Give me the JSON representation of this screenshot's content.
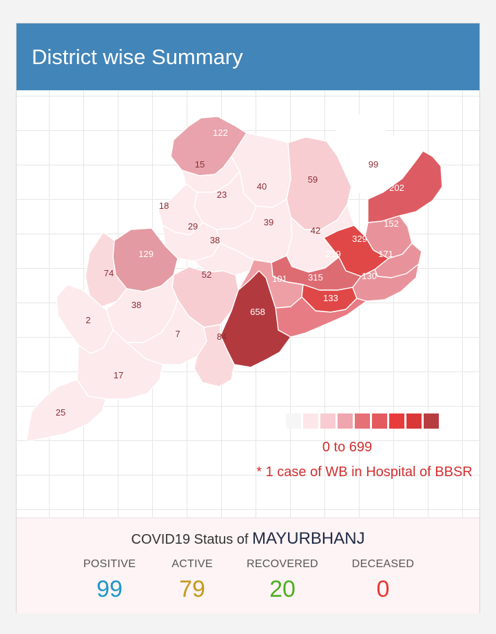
{
  "header": {
    "title": "District wise Summary"
  },
  "map": {
    "districts": [
      {
        "value": "122",
        "fill": "#e9a3ac"
      },
      {
        "value": "15",
        "fill": "#fdeaec"
      },
      {
        "value": "99",
        "fill": "#ffffff"
      },
      {
        "value": "59",
        "fill": "#f7cdd2"
      },
      {
        "value": "40",
        "fill": "#fdeaec"
      },
      {
        "value": "23",
        "fill": "#fdeaec"
      },
      {
        "value": "202",
        "fill": "#dd5c64"
      },
      {
        "value": "18",
        "fill": "#fdeaec"
      },
      {
        "value": "29",
        "fill": "#fdeaec"
      },
      {
        "value": "39",
        "fill": "#fdeaec"
      },
      {
        "value": "42",
        "fill": "#fdeaec"
      },
      {
        "value": "152",
        "fill": "#e8939b"
      },
      {
        "value": "329",
        "fill": "#e04848"
      },
      {
        "value": "38",
        "fill": "#fdeaec"
      },
      {
        "value": "129",
        "fill": "#e39aa2"
      },
      {
        "value": "171",
        "fill": "#e8939b"
      },
      {
        "value": "219",
        "fill": "#dd6c72"
      },
      {
        "value": "74",
        "fill": "#fad9dd"
      },
      {
        "value": "52",
        "fill": "#f7cdd2"
      },
      {
        "value": "101",
        "fill": "#ee9fa6"
      },
      {
        "value": "315",
        "fill": "#e04848"
      },
      {
        "value": "130",
        "fill": "#e8939b"
      },
      {
        "value": "133",
        "fill": "#e87c84"
      },
      {
        "value": "38",
        "fill": "#fdeaec"
      },
      {
        "value": "658",
        "fill": "#b23a3f"
      },
      {
        "value": "2",
        "fill": "#fdeaec"
      },
      {
        "value": "7",
        "fill": "#fdeaec"
      },
      {
        "value": "84",
        "fill": "#fad9dd"
      },
      {
        "value": "17",
        "fill": "#fdeaec"
      },
      {
        "value": "25",
        "fill": "#fdeaec"
      }
    ],
    "legend": {
      "colors": [
        "#f6f6f6",
        "#fde6e9",
        "#f8cbd1",
        "#eea5ad",
        "#e57076",
        "#e45a5f",
        "#e83c3c",
        "#d93838",
        "#b83d41"
      ],
      "range": "0 to 699",
      "note": "* 1 case of WB in Hospital of BBSR"
    }
  },
  "status": {
    "title_prefix": "COVID19 Status of",
    "district": "MAYURBHANJ",
    "stats": [
      {
        "label": "POSITIVE",
        "value": "99",
        "color": "#2196c9"
      },
      {
        "label": "ACTIVE",
        "value": "79",
        "color": "#c49a1a"
      },
      {
        "label": "RECOVERED",
        "value": "20",
        "color": "#4caf1f"
      },
      {
        "label": "DECEASED",
        "value": "0",
        "color": "#e53935"
      }
    ]
  }
}
